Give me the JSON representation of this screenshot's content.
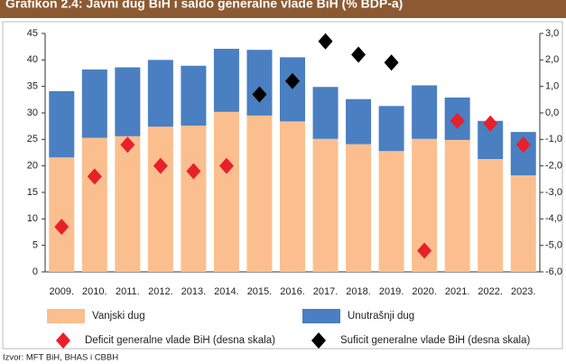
{
  "chart_data": {
    "type": "bar",
    "title": "Grafikon 2.4: Javni dug BiH i saldo generalne vlade BiH (% BDP-a)",
    "categories": [
      "2009.",
      "2010.",
      "2011.",
      "2012.",
      "2013.",
      "2014.",
      "2015.",
      "2016.",
      "2017.",
      "2018.",
      "2019.",
      "2020.",
      "2021.",
      "2022.",
      "2023."
    ],
    "series": [
      {
        "name": "Vanjski dug",
        "color": "#fbbf8f",
        "values": [
          21.6,
          25.3,
          25.6,
          27.4,
          27.6,
          30.2,
          29.5,
          28.4,
          25.1,
          24.1,
          22.8,
          25.1,
          24.9,
          21.3,
          18.2
        ]
      },
      {
        "name": "Unutrašnji dug",
        "color": "#4a7fc1",
        "values": [
          12.5,
          12.9,
          13.0,
          12.6,
          11.3,
          11.9,
          12.4,
          12.1,
          9.8,
          8.5,
          8.5,
          10.1,
          8.0,
          7.2,
          8.2
        ]
      },
      {
        "name": "Deficit generalne vlade BiH (desna skala)",
        "color": "#e8202a",
        "axis": "y2",
        "values": [
          -4.3,
          -2.4,
          -1.2,
          -2.0,
          -2.2,
          -2.0,
          null,
          null,
          null,
          null,
          null,
          -5.2,
          -0.3,
          -0.4,
          -1.2
        ]
      },
      {
        "name": "Suficit generalne vlade BiH (desna skala)",
        "color": "#000000",
        "axis": "y2",
        "values": [
          null,
          null,
          null,
          null,
          null,
          null,
          0.7,
          1.2,
          2.7,
          2.2,
          1.9,
          null,
          null,
          null,
          null
        ]
      }
    ],
    "ylim": [
      0,
      45
    ],
    "yticks": [
      0,
      5,
      10,
      15,
      20,
      25,
      30,
      35,
      40,
      45
    ],
    "y2lim": [
      -6,
      3
    ],
    "y2ticks": [
      {
        "value": -6,
        "label": "-6,0"
      },
      {
        "value": -5,
        "label": "-5,0"
      },
      {
        "value": -4,
        "label": "-4,0"
      },
      {
        "value": -3,
        "label": "-3,0"
      },
      {
        "value": -2,
        "label": "-2,0"
      },
      {
        "value": -1,
        "label": "-1,0"
      },
      {
        "value": 0,
        "label": "0,0"
      },
      {
        "value": 1,
        "label": "1,0"
      },
      {
        "value": 2,
        "label": "2,0"
      },
      {
        "value": 3,
        "label": "3,0"
      }
    ],
    "source": "Izvor: MFT BiH, BHAS i CBBH"
  }
}
